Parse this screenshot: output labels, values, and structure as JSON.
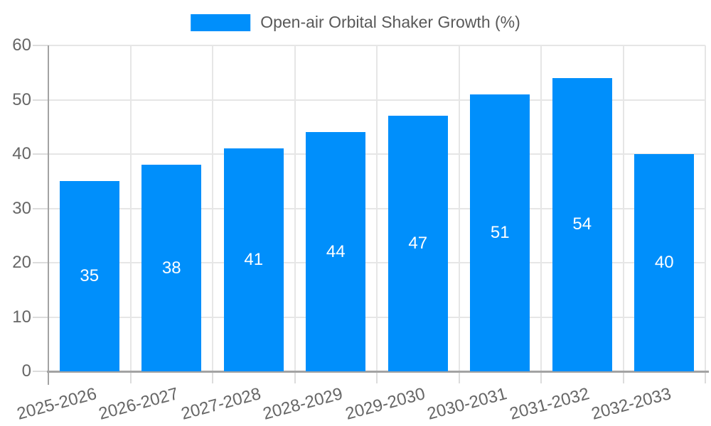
{
  "chart_data": {
    "type": "bar",
    "legend": {
      "label": "Open-air Orbital Shaker Growth (%)",
      "position": "top"
    },
    "categories": [
      "2025-2026",
      "2026-2027",
      "2027-2028",
      "2028-2029",
      "2029-2030",
      "2030-2031",
      "2031-2032",
      "2032-2033"
    ],
    "series": [
      {
        "name": "Open-air Orbital Shaker Growth (%)",
        "values": [
          35,
          38,
          41,
          44,
          47,
          51,
          54,
          40
        ]
      }
    ],
    "show_values_inside_bars": true,
    "ylim": [
      0,
      60
    ],
    "y_ticks": [
      0,
      10,
      20,
      30,
      40,
      50,
      60
    ],
    "grid": "both",
    "x_tick_rotation_deg": -15,
    "colors": {
      "bar": "#008FFB",
      "bar_value_label": "#ffffff",
      "tick_label": "#666666",
      "legend_text": "#595959",
      "gridline": "#e6e6e6",
      "axis_line": "#a3a3a3",
      "background": "#ffffff"
    }
  }
}
